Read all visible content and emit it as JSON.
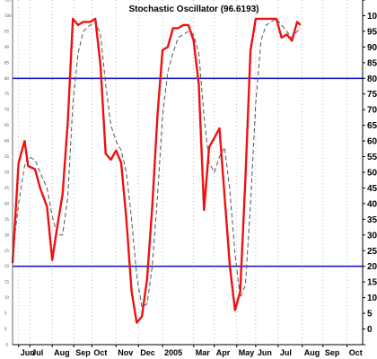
{
  "chart_data": {
    "type": "line",
    "title": "Stochastic Oscillator (96.6193)",
    "xlabel": "",
    "ylabel": "",
    "ylim": [
      -5,
      105
    ],
    "x_range": [
      0,
      20.3
    ],
    "y_ticks": [
      -5,
      0,
      5,
      10,
      15,
      20,
      25,
      30,
      35,
      40,
      45,
      50,
      55,
      60,
      65,
      70,
      75,
      80,
      85,
      90,
      95,
      100,
      105
    ],
    "y_tick_labels": [
      "-5",
      "0",
      "5",
      "10",
      "15",
      "20",
      "25",
      "30",
      "35",
      "40",
      "45",
      "50",
      "55",
      "60",
      "65",
      "70",
      "75",
      "80",
      "85",
      "90",
      "95",
      "100",
      "105"
    ],
    "x_ticks": [
      {
        "label": "Jun",
        "pos": 0.35
      },
      {
        "label": "Jul",
        "pos": 1.0
      },
      {
        "label": "Aug",
        "pos": 2.3
      },
      {
        "label": "Sep",
        "pos": 3.55
      },
      {
        "label": "Oct",
        "pos": 4.6
      },
      {
        "label": "Nov",
        "pos": 6.0
      },
      {
        "label": "Dec",
        "pos": 7.3
      },
      {
        "label": "2005",
        "pos": 8.7
      },
      {
        "label": "Mar",
        "pos": 10.5
      },
      {
        "label": "Apr",
        "pos": 11.7
      },
      {
        "label": "May",
        "pos": 13.0
      },
      {
        "label": "Jun",
        "pos": 14.1
      },
      {
        "label": "Jul",
        "pos": 15.4
      },
      {
        "label": "Aug",
        "pos": 16.8
      },
      {
        "label": "Sep",
        "pos": 18.0
      },
      {
        "label": "Oct",
        "pos": 19.4
      }
    ],
    "reference_lines": [
      20,
      80
    ],
    "grid": {
      "vertical": true,
      "horizontal": false
    },
    "series": [
      {
        "color": "#ee1111",
        "style": "solid",
        "x": [
          0,
          0.35,
          0.7,
          0.9,
          1.3,
          1.6,
          2.0,
          2.3,
          2.6,
          2.9,
          3.2,
          3.5,
          3.8,
          4.1,
          4.5,
          4.8,
          5.1,
          5.4,
          5.7,
          6.0,
          6.3,
          6.6,
          6.9,
          7.2,
          7.5,
          7.8,
          8.1,
          8.4,
          8.7,
          9.0,
          9.3,
          9.6,
          9.9,
          10.2,
          10.5,
          10.8,
          11.1,
          11.4,
          11.7,
          12.0,
          12.3,
          12.6,
          12.9,
          13.2,
          13.5,
          13.8,
          14.1,
          14.4,
          14.7,
          15.0,
          15.3,
          15.6,
          15.9,
          16.2,
          16.5,
          16.7
        ],
        "y": [
          21,
          53,
          60,
          52,
          51,
          45,
          39,
          22,
          33,
          43,
          66,
          99,
          97,
          98,
          98,
          99,
          84,
          56,
          54,
          57,
          53,
          35,
          12,
          2,
          4,
          16,
          39,
          68,
          89,
          90,
          96,
          96,
          97,
          97,
          92,
          78,
          38,
          58,
          61,
          64,
          42,
          20,
          6,
          12,
          48,
          89,
          99,
          99,
          99,
          99,
          99,
          93,
          94,
          92,
          98,
          97
        ]
      },
      {
        "color": "#555555",
        "style": "dashed",
        "x": [
          0,
          0.35,
          0.7,
          0.9,
          1.3,
          1.6,
          2.0,
          2.3,
          2.6,
          2.9,
          3.2,
          3.5,
          3.8,
          4.1,
          4.5,
          4.8,
          5.1,
          5.4,
          5.7,
          6.0,
          6.3,
          6.6,
          6.9,
          7.2,
          7.5,
          7.8,
          8.1,
          8.4,
          8.7,
          9.0,
          9.3,
          9.6,
          9.9,
          10.2,
          10.5,
          10.8,
          11.1,
          11.4,
          11.7,
          12.0,
          12.3,
          12.6,
          12.9,
          13.2,
          13.5,
          13.8,
          14.1,
          14.4,
          14.7,
          15.0,
          15.3,
          15.6,
          15.9,
          16.2,
          16.5,
          16.7
        ],
        "y": [
          24,
          40,
          52,
          55,
          54,
          50,
          45,
          36,
          30,
          30,
          42,
          72,
          88,
          95,
          97,
          98,
          94,
          78,
          65,
          60,
          57,
          50,
          35,
          17,
          7,
          8,
          20,
          42,
          68,
          82,
          88,
          93,
          94,
          95,
          94,
          88,
          68,
          53,
          50,
          55,
          58,
          44,
          24,
          10,
          14,
          40,
          72,
          92,
          97,
          98,
          99,
          97,
          95,
          93,
          95,
          96
        ]
      }
    ]
  }
}
